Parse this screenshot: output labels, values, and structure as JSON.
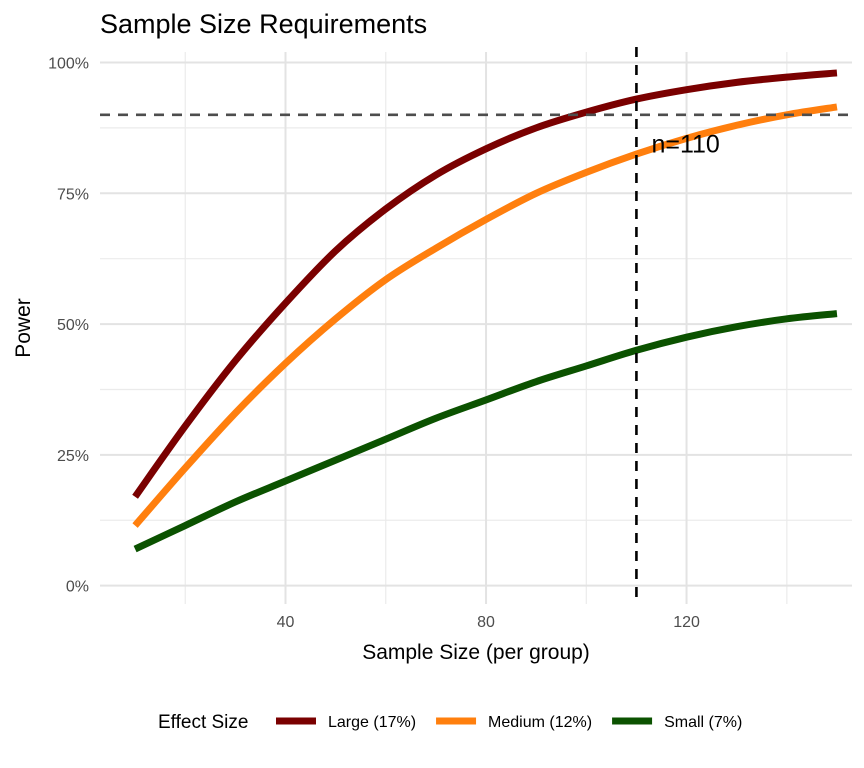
{
  "chart_data": {
    "type": "line",
    "title": "Sample Size Requirements",
    "xlabel": "Sample Size (per group)",
    "ylabel": "Power",
    "xlim": [
      3,
      153
    ],
    "ylim": [
      -0.035,
      1.02
    ],
    "x_major_ticks": [
      40,
      80,
      120
    ],
    "x_minor_ticks": [
      20,
      60,
      100,
      140
    ],
    "x_tick_labels": [
      "40",
      "80",
      "120"
    ],
    "y_major_ticks": [
      0,
      0.25,
      0.5,
      0.75,
      1.0
    ],
    "y_minor_ticks": [
      0.125,
      0.375,
      0.625,
      0.875
    ],
    "y_tick_labels": [
      "0%",
      "25%",
      "50%",
      "75%",
      "100%"
    ],
    "grid": true,
    "legend": {
      "title": "Effect Size",
      "position": "bottom"
    },
    "reference_lines": {
      "horizontal": {
        "y": 0.9,
        "style": "dashed",
        "color": "#4d4d4d"
      },
      "vertical": {
        "x": 110,
        "style": "dashed",
        "color": "#000000"
      }
    },
    "annotation": {
      "text": "n=110",
      "x": 113,
      "y": 0.845
    },
    "x": [
      10,
      20,
      30,
      40,
      50,
      60,
      70,
      80,
      90,
      100,
      110,
      120,
      130,
      140,
      150
    ],
    "series": [
      {
        "name": "Large (17%)",
        "color": "#7a0000",
        "values": [
          0.17,
          0.305,
          0.43,
          0.54,
          0.64,
          0.72,
          0.785,
          0.835,
          0.875,
          0.905,
          0.93,
          0.948,
          0.962,
          0.972,
          0.98
        ]
      },
      {
        "name": "Medium (12%)",
        "color": "#ff7f0e",
        "values": [
          0.115,
          0.225,
          0.33,
          0.425,
          0.51,
          0.585,
          0.645,
          0.7,
          0.75,
          0.79,
          0.825,
          0.855,
          0.88,
          0.9,
          0.915
        ]
      },
      {
        "name": "Small (7%)",
        "color": "#0b5200",
        "values": [
          0.07,
          0.115,
          0.16,
          0.2,
          0.24,
          0.28,
          0.32,
          0.355,
          0.39,
          0.42,
          0.45,
          0.475,
          0.495,
          0.51,
          0.52
        ]
      }
    ]
  }
}
